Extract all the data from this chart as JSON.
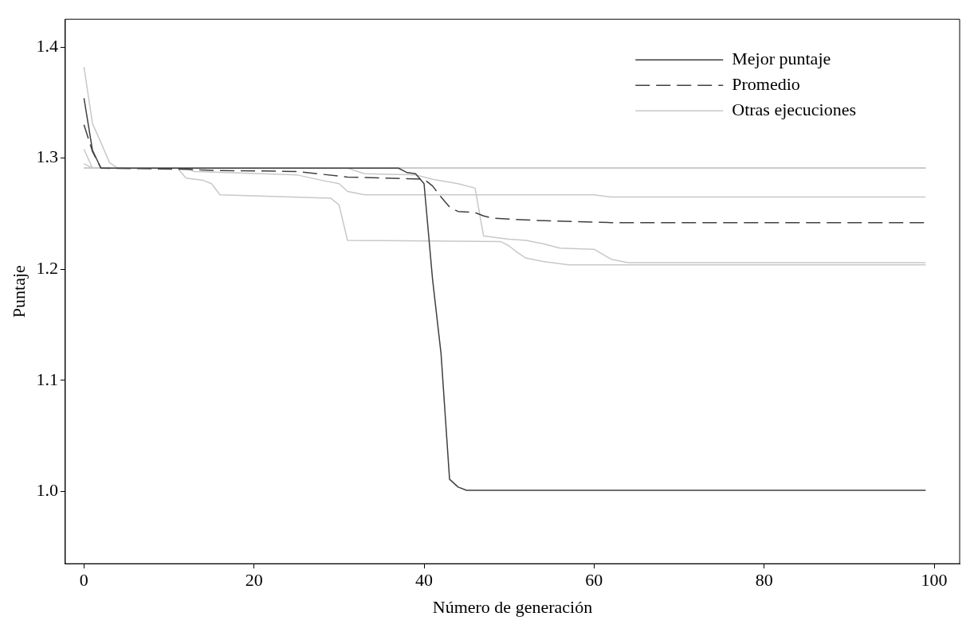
{
  "chart_data": {
    "type": "line",
    "xlabel": "Número de generación",
    "ylabel": "Puntaje",
    "xlim": [
      -2.2,
      103
    ],
    "xticks": [
      0,
      20,
      40,
      60,
      80,
      100
    ],
    "ylim": [
      0.935,
      1.425
    ],
    "yticks": [
      {
        "value": 1,
        "label": "1.0"
      },
      {
        "value": 1.1,
        "label": "1.1"
      },
      {
        "value": 1.2,
        "label": "1.2"
      },
      {
        "value": 1.3,
        "label": "1.3"
      },
      {
        "value": 1.4,
        "label": "1.4"
      }
    ],
    "grid": false,
    "legend": "top right",
    "marker": "none",
    "series": [
      {
        "name": "Mejor puntaje",
        "color": "#404040",
        "line_style": "solid",
        "x": [
          0,
          1,
          2,
          37,
          38,
          39,
          40,
          41,
          42,
          43,
          44,
          45,
          99
        ],
        "values": [
          1.354,
          1.307,
          1.291,
          1.291,
          1.287,
          1.286,
          1.277,
          1.191,
          1.124,
          1.011,
          1.004,
          1.001,
          1.001
        ]
      },
      {
        "name": "Promedio",
        "color": "#404040",
        "line_style": "dashed",
        "x": [
          0,
          1,
          2,
          12,
          15,
          25,
          31,
          40,
          41,
          42,
          43,
          44,
          46,
          47,
          48,
          53,
          62,
          99
        ],
        "values": [
          1.33,
          1.306,
          1.291,
          1.29,
          1.289,
          1.288,
          1.283,
          1.281,
          1.275,
          1.265,
          1.256,
          1.252,
          1.251,
          1.248,
          1.246,
          1.244,
          1.242,
          1.242
        ]
      },
      {
        "name": "Otras ejecuciones",
        "color": "#c8c8c8",
        "line_style": "solid",
        "x": [
          0,
          1,
          2,
          3,
          4,
          99
        ],
        "values": [
          1.382,
          1.331,
          1.314,
          1.296,
          1.291,
          1.291
        ]
      },
      {
        "color": "#c8c8c8",
        "line_style": "solid",
        "x": [
          0,
          1,
          99
        ],
        "values": [
          1.308,
          1.291,
          1.291
        ]
      },
      {
        "color": "#c8c8c8",
        "line_style": "solid",
        "x": [
          0,
          1,
          99
        ],
        "values": [
          1.295,
          1.291,
          1.291
        ]
      },
      {
        "color": "#c8c8c8",
        "line_style": "solid",
        "x": [
          0,
          12,
          13,
          25,
          28,
          30,
          31,
          33,
          60,
          62,
          67,
          99
        ],
        "values": [
          1.291,
          1.291,
          1.288,
          1.285,
          1.28,
          1.277,
          1.27,
          1.267,
          1.267,
          1.265,
          1.265,
          1.265
        ]
      },
      {
        "color": "#c8c8c8",
        "line_style": "solid",
        "x": [
          0,
          11,
          12,
          14,
          15,
          16,
          29,
          30,
          31,
          49,
          50,
          51,
          52,
          54,
          57,
          99
        ],
        "values": [
          1.291,
          1.291,
          1.282,
          1.28,
          1.277,
          1.267,
          1.264,
          1.258,
          1.226,
          1.225,
          1.221,
          1.215,
          1.21,
          1.207,
          1.204,
          1.204
        ]
      },
      {
        "color": "#c8c8c8",
        "line_style": "solid",
        "x": [
          0,
          31,
          33,
          39,
          41,
          44,
          46,
          47,
          50,
          52,
          54,
          56,
          60,
          62,
          64,
          99
        ],
        "values": [
          1.291,
          1.291,
          1.286,
          1.285,
          1.281,
          1.277,
          1.273,
          1.23,
          1.227,
          1.226,
          1.223,
          1.219,
          1.218,
          1.209,
          1.206,
          1.206
        ]
      }
    ]
  }
}
